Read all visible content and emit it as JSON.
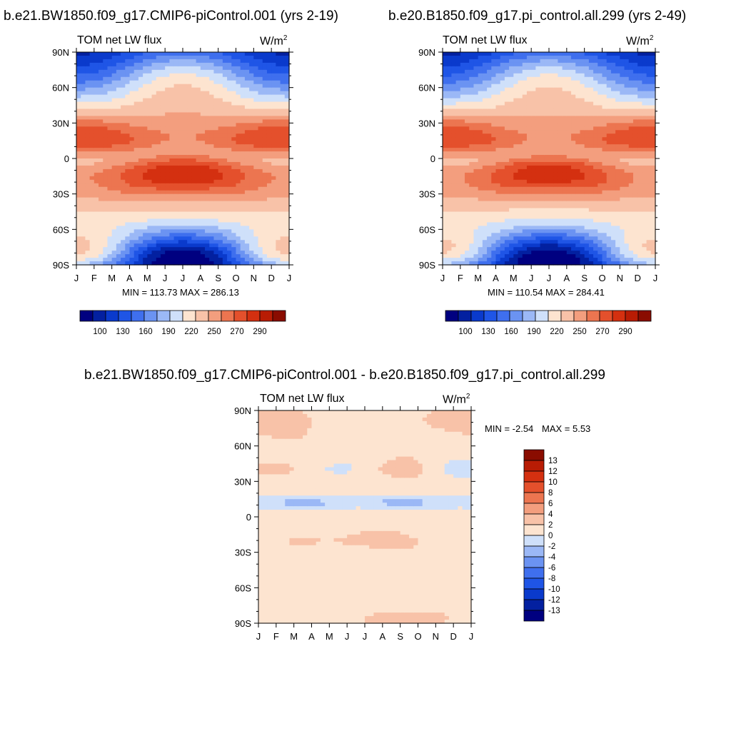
{
  "chart_data": [
    {
      "type": "heatmap",
      "title": "b.e21.BW1850.f09_g17.CMIP6-piControl.001 (yrs 2-19)",
      "left_label": "TOM net LW flux",
      "units_label": "W/m",
      "units_exp": "2",
      "x_ticks": [
        "J",
        "F",
        "M",
        "A",
        "M",
        "J",
        "J",
        "A",
        "S",
        "O",
        "N",
        "D",
        "J"
      ],
      "y_ticks": [
        "90N",
        "60N",
        "30N",
        "0",
        "30S",
        "60S",
        "90S"
      ],
      "stats": "MIN = 113.73 MAX = 286.13",
      "colorbar_labels": [
        "100",
        "130",
        "160",
        "190",
        "220",
        "250",
        "270",
        "290"
      ],
      "colorbar_colors": [
        "#000080",
        "#0320a0",
        "#0a3acc",
        "#1f55e6",
        "#3f6fee",
        "#6b93f2",
        "#9bb8f6",
        "#cfe0fa",
        "#fde4d0",
        "#f8c2a8",
        "#f39e7e",
        "#ec7550",
        "#e4502c",
        "#d43010",
        "#b81c04",
        "#8a0c00"
      ],
      "z_range": [
        100,
        300
      ],
      "field": "seasonal_olr_ctrl"
    },
    {
      "type": "heatmap",
      "title": "b.e20.B1850.f09_g17.pi_control.all.299 (yrs 2-49)",
      "left_label": "TOM net LW flux",
      "units_label": "W/m",
      "units_exp": "2",
      "x_ticks": [
        "J",
        "F",
        "M",
        "A",
        "M",
        "J",
        "J",
        "A",
        "S",
        "O",
        "N",
        "D",
        "J"
      ],
      "y_ticks": [
        "90N",
        "60N",
        "30N",
        "0",
        "30S",
        "60S",
        "90S"
      ],
      "stats": "MIN = 110.54 MAX = 284.41",
      "colorbar_labels": [
        "100",
        "130",
        "160",
        "190",
        "220",
        "250",
        "270",
        "290"
      ],
      "colorbar_colors": [
        "#000080",
        "#0320a0",
        "#0a3acc",
        "#1f55e6",
        "#3f6fee",
        "#6b93f2",
        "#9bb8f6",
        "#cfe0fa",
        "#fde4d0",
        "#f8c2a8",
        "#f39e7e",
        "#ec7550",
        "#e4502c",
        "#d43010",
        "#b81c04",
        "#8a0c00"
      ],
      "z_range": [
        100,
        300
      ],
      "field": "seasonal_olr_ref"
    },
    {
      "type": "heatmap",
      "title": "b.e21.BW1850.f09_g17.CMIP6-piControl.001 - b.e20.B1850.f09_g17.pi_control.all.299",
      "left_label": "TOM net LW flux",
      "units_label": "W/m",
      "units_exp": "2",
      "x_ticks": [
        "J",
        "F",
        "M",
        "A",
        "M",
        "J",
        "J",
        "A",
        "S",
        "O",
        "N",
        "D",
        "J"
      ],
      "y_ticks": [
        "90N",
        "60N",
        "30N",
        "0",
        "30S",
        "60S",
        "90S"
      ],
      "stats_min": "MIN =  -2.54",
      "stats_max": "MAX =   5.53",
      "colorbar_labels": [
        "13",
        "12",
        "10",
        "8",
        "6",
        "4",
        "2",
        "0",
        "-2",
        "-4",
        "-6",
        "-8",
        "-10",
        "-12",
        "-13"
      ],
      "colorbar_colors": [
        "#8a0c00",
        "#b81c04",
        "#d43010",
        "#e4502c",
        "#ec7550",
        "#f39e7e",
        "#f8c2a8",
        "#fde4d0",
        "#cfe0fa",
        "#9bb8f6",
        "#6b93f2",
        "#3f6fee",
        "#1f55e6",
        "#0a3acc",
        "#0320a0",
        "#000080"
      ],
      "field": "difference"
    }
  ]
}
